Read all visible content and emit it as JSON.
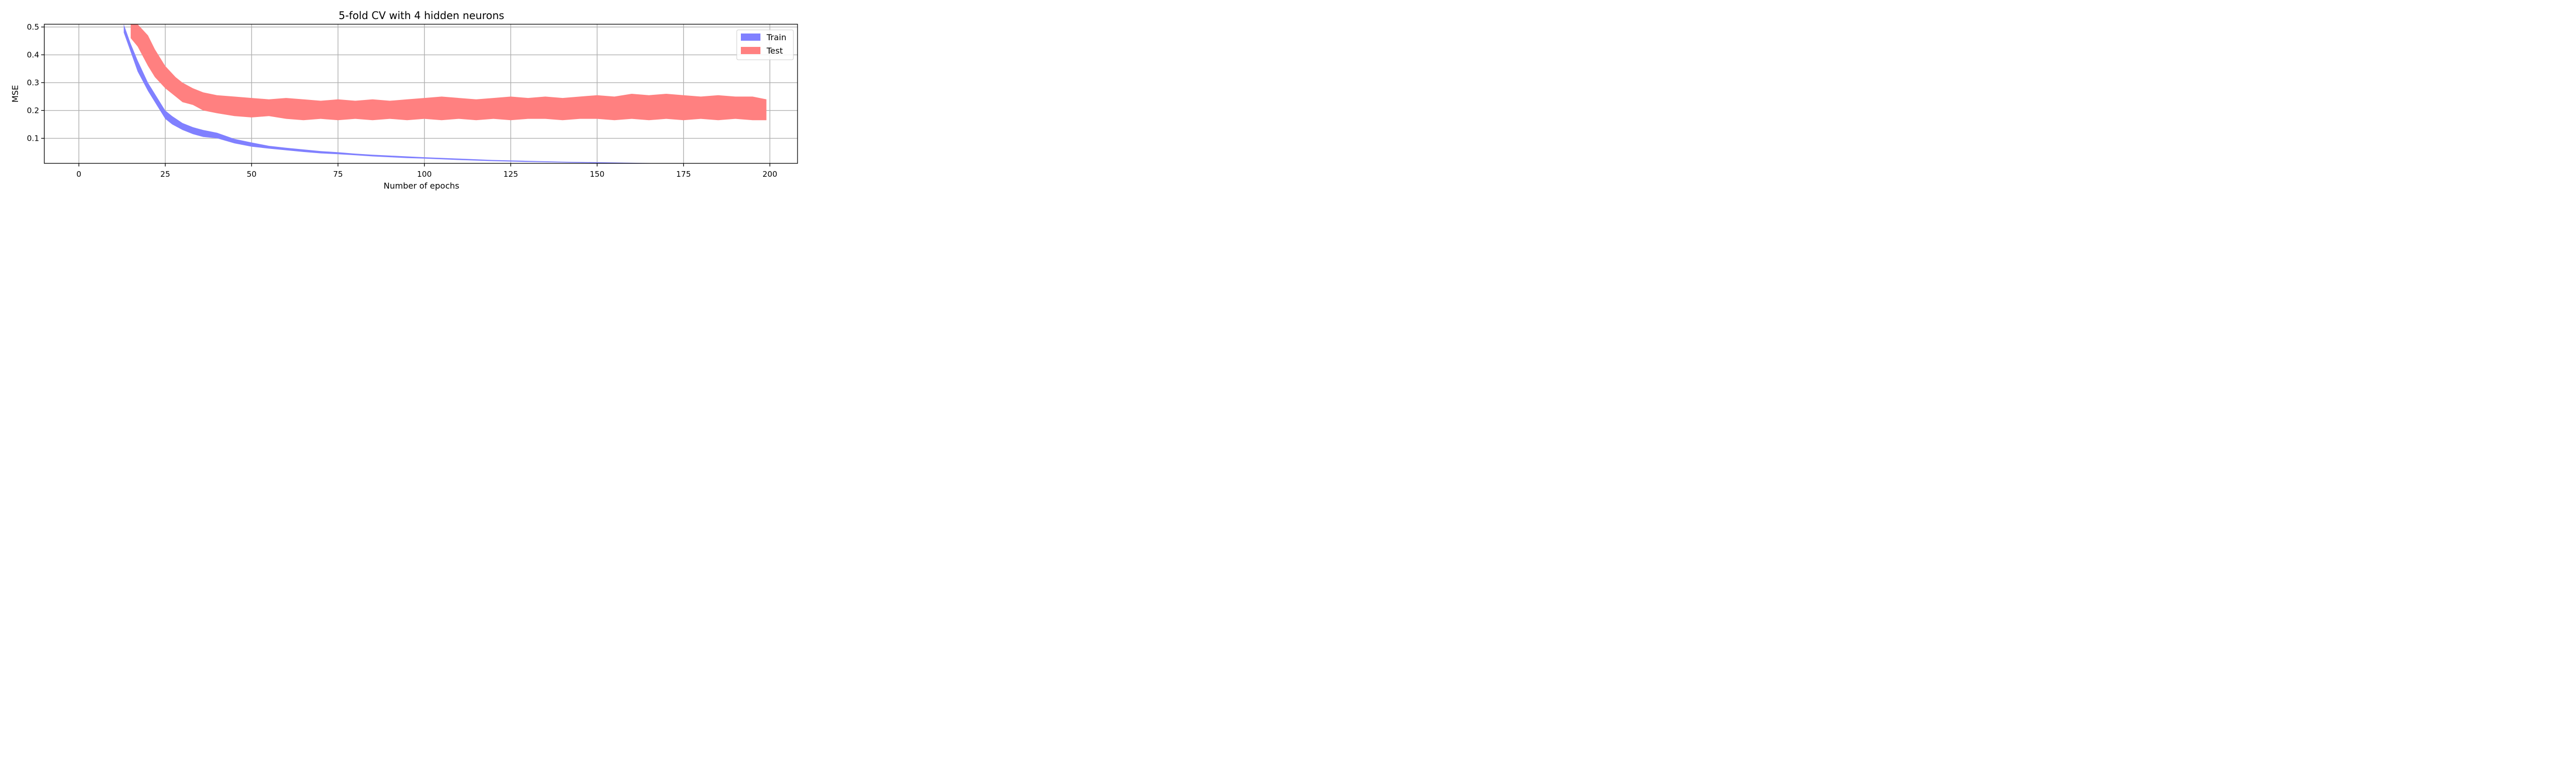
{
  "chart_data": {
    "type": "area",
    "title": "5-fold CV with 4 hidden neurons",
    "xlabel": "Number of epochs",
    "ylabel": "MSE",
    "xlim": [
      -10,
      208
    ],
    "ylim": [
      0.01,
      0.51
    ],
    "xticks": [
      0,
      25,
      50,
      75,
      100,
      125,
      150,
      175,
      200
    ],
    "yticks": [
      0.1,
      0.2,
      0.3,
      0.4,
      0.5
    ],
    "xtick_labels": [
      "0",
      "25",
      "50",
      "75",
      "100",
      "125",
      "150",
      "175",
      "200"
    ],
    "ytick_labels": [
      "0.1",
      "0.2",
      "0.3",
      "0.4",
      "0.5"
    ],
    "grid": true,
    "legend_position": "upper right",
    "series": [
      {
        "name": "Train",
        "color": "#8080ff",
        "x": [
          13,
          15,
          17,
          20,
          22,
          25,
          27,
          30,
          33,
          36,
          40,
          45,
          50,
          55,
          60,
          65,
          70,
          75,
          80,
          85,
          90,
          95,
          100,
          110,
          120,
          130,
          140,
          150,
          160,
          170,
          180,
          190,
          199
        ],
        "upper": [
          0.51,
          0.44,
          0.38,
          0.3,
          0.26,
          0.2,
          0.18,
          0.155,
          0.14,
          0.13,
          0.12,
          0.098,
          0.085,
          0.073,
          0.066,
          0.06,
          0.054,
          0.05,
          0.045,
          0.041,
          0.038,
          0.035,
          0.032,
          0.027,
          0.022,
          0.019,
          0.016,
          0.014,
          0.012,
          0.01,
          0.009,
          0.008,
          0.007
        ],
        "lower": [
          0.48,
          0.41,
          0.34,
          0.27,
          0.23,
          0.17,
          0.15,
          0.13,
          0.115,
          0.105,
          0.1,
          0.082,
          0.07,
          0.063,
          0.057,
          0.051,
          0.046,
          0.043,
          0.039,
          0.035,
          0.032,
          0.029,
          0.027,
          0.022,
          0.018,
          0.015,
          0.013,
          0.011,
          0.009,
          0.008,
          0.007,
          0.006,
          0.005
        ]
      },
      {
        "name": "Test",
        "color": "#ff8080",
        "x": [
          15,
          17,
          20,
          22,
          25,
          28,
          30,
          33,
          36,
          40,
          45,
          50,
          55,
          60,
          65,
          70,
          75,
          80,
          85,
          90,
          95,
          100,
          105,
          110,
          115,
          120,
          125,
          130,
          135,
          140,
          145,
          150,
          155,
          160,
          165,
          170,
          175,
          180,
          185,
          190,
          195,
          199
        ],
        "upper": [
          0.51,
          0.51,
          0.47,
          0.42,
          0.36,
          0.32,
          0.3,
          0.28,
          0.265,
          0.255,
          0.25,
          0.245,
          0.24,
          0.245,
          0.24,
          0.235,
          0.24,
          0.235,
          0.24,
          0.235,
          0.24,
          0.245,
          0.25,
          0.245,
          0.24,
          0.245,
          0.25,
          0.245,
          0.25,
          0.245,
          0.25,
          0.255,
          0.25,
          0.26,
          0.255,
          0.26,
          0.255,
          0.25,
          0.255,
          0.25,
          0.25,
          0.24
        ],
        "lower": [
          0.46,
          0.43,
          0.36,
          0.32,
          0.28,
          0.25,
          0.23,
          0.22,
          0.2,
          0.19,
          0.18,
          0.175,
          0.18,
          0.17,
          0.165,
          0.17,
          0.165,
          0.17,
          0.165,
          0.17,
          0.165,
          0.17,
          0.165,
          0.17,
          0.165,
          0.17,
          0.165,
          0.17,
          0.17,
          0.165,
          0.17,
          0.17,
          0.165,
          0.17,
          0.165,
          0.17,
          0.165,
          0.17,
          0.165,
          0.17,
          0.165,
          0.165
        ]
      }
    ]
  }
}
